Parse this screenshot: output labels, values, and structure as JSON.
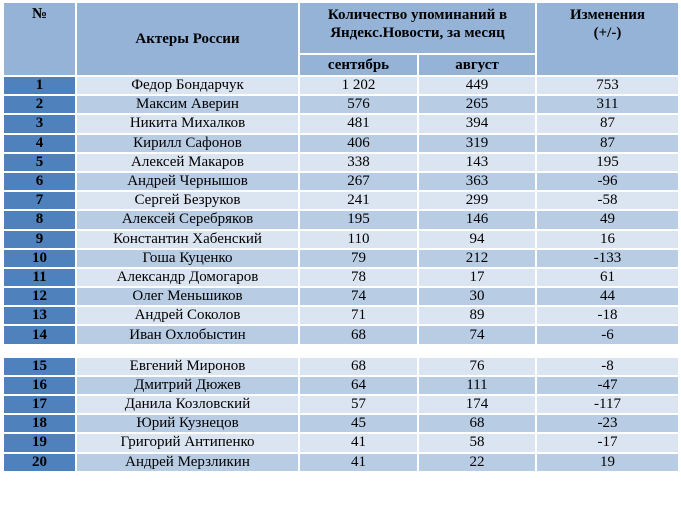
{
  "table": {
    "headers": {
      "num": "№",
      "actors": "Актеры России",
      "mentions": "Количество упоминаний в Яндекс.Новости, за месяц",
      "change": "Изменения (+/-)",
      "september": "сентябрь",
      "august": "август"
    },
    "rows": [
      {
        "num": "1",
        "name": "Федор Бондарчук",
        "sep": "1 202",
        "aug": "449",
        "change": "753"
      },
      {
        "num": "2",
        "name": "Максим Аверин",
        "sep": "576",
        "aug": "265",
        "change": "311"
      },
      {
        "num": "3",
        "name": "Никита Михалков",
        "sep": "481",
        "aug": "394",
        "change": "87"
      },
      {
        "num": "4",
        "name": "Кирилл Сафонов",
        "sep": "406",
        "aug": "319",
        "change": "87"
      },
      {
        "num": "5",
        "name": "Алексей Макаров",
        "sep": "338",
        "aug": "143",
        "change": "195"
      },
      {
        "num": "6",
        "name": "Андрей Чернышов",
        "sep": "267",
        "aug": "363",
        "change": "-96"
      },
      {
        "num": "7",
        "name": "Сергей Безруков",
        "sep": "241",
        "aug": "299",
        "change": "-58"
      },
      {
        "num": "8",
        "name": "Алексей Серебряков",
        "sep": "195",
        "aug": "146",
        "change": "49"
      },
      {
        "num": "9",
        "name": "Константин Хабенский",
        "sep": "110",
        "aug": "94",
        "change": "16"
      },
      {
        "num": "10",
        "name": "Гоша Куценко",
        "sep": "79",
        "aug": "212",
        "change": "-133"
      },
      {
        "num": "11",
        "name": "Александр Домогаров",
        "sep": "78",
        "aug": "17",
        "change": "61"
      },
      {
        "num": "12",
        "name": "Олег Меньшиков",
        "sep": "74",
        "aug": "30",
        "change": "44"
      },
      {
        "num": "13",
        "name": "Андрей Соколов",
        "sep": "71",
        "aug": "89",
        "change": "-18"
      },
      {
        "num": "14",
        "name": "Иван Охлобыстин",
        "sep": "68",
        "aug": "74",
        "change": "-6"
      },
      {
        "num": "15",
        "name": "Евгений Миронов",
        "sep": "68",
        "aug": "76",
        "change": "-8"
      },
      {
        "num": "16",
        "name": "Дмитрий Дюжев",
        "sep": "64",
        "aug": "111",
        "change": "-47"
      },
      {
        "num": "17",
        "name": "Данила Козловский",
        "sep": "57",
        "aug": "174",
        "change": "-117"
      },
      {
        "num": "18",
        "name": "Юрий Кузнецов",
        "sep": "45",
        "aug": "68",
        "change": "-23"
      },
      {
        "num": "19",
        "name": "Григорий Антипенко",
        "sep": "41",
        "aug": "58",
        "change": "-17"
      },
      {
        "num": "20",
        "name": "Андрей Мерзликин",
        "sep": "41",
        "aug": "22",
        "change": "19"
      }
    ]
  },
  "colors": {
    "header_bg": "#95b3d7",
    "num_bg": "#4f81bd",
    "row_light": "#dbe5f1",
    "row_dark": "#b8cce4"
  }
}
